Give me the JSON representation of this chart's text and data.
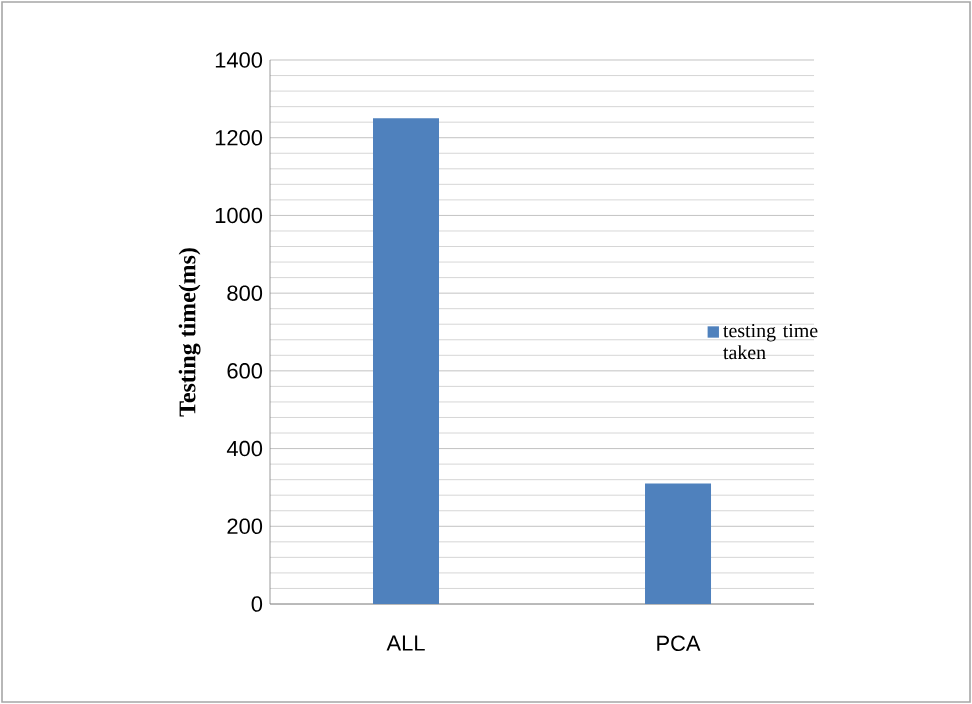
{
  "chart_data": {
    "type": "bar",
    "ylabel": "Testing time(ms)",
    "categories": [
      "ALL",
      "PCA"
    ],
    "series": [
      {
        "name": "testing time taken",
        "color": "#4f81bd",
        "values": [
          1250,
          310
        ]
      }
    ],
    "ylim": [
      0,
      1400
    ],
    "yticks": [
      0,
      200,
      400,
      600,
      800,
      1000,
      1200,
      1400
    ],
    "grid": "y",
    "legend": "right"
  }
}
